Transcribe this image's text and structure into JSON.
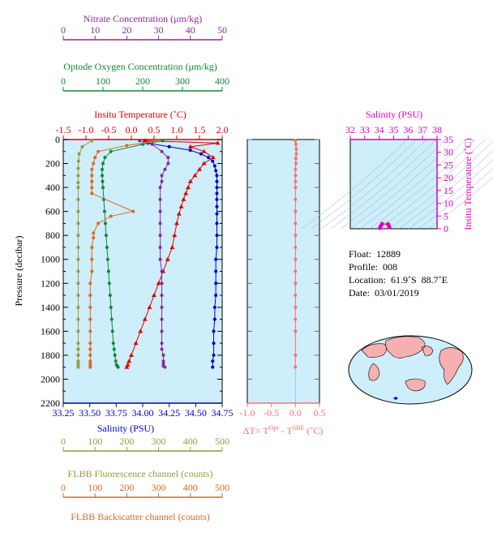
{
  "colors": {
    "plot_bg": "#cdeefa",
    "salinity": "#0000cc",
    "temperature": "#e00000",
    "oxygen": "#118833",
    "nitrate": "#8a2a9a",
    "fluorescence": "#99993a",
    "backscatter": "#dd6a1a",
    "delta_t": "#ff6f6f",
    "ts_axis": "#dd00bb",
    "land": "#f5b0b0"
  },
  "axes": {
    "nitrate": {
      "title": "Nitrate Concentration (μm/kg)",
      "ticks": [
        "0",
        "10",
        "20",
        "30",
        "40",
        "50"
      ],
      "range": [
        0,
        50
      ]
    },
    "oxygen": {
      "title": "Optode Oxygen Concentration (μm/kg)",
      "ticks": [
        "0",
        "100",
        "200",
        "300",
        "400"
      ],
      "range": [
        0,
        400
      ]
    },
    "temperature": {
      "title": "Insitu Temperature (˚C)",
      "ticks": [
        "-1.5",
        "-1.0",
        "-0.5",
        "0.0",
        "0.5",
        "1.0",
        "1.5",
        "2.0"
      ],
      "range": [
        -1.5,
        2.0
      ]
    },
    "salinity": {
      "title": "Salinity (PSU)",
      "ticks": [
        "33.25",
        "33.50",
        "33.75",
        "34.00",
        "34.25",
        "34.50",
        "34.75"
      ],
      "range": [
        33.25,
        34.75
      ]
    },
    "pressure": {
      "title": "Pressure (decibar)",
      "ticks": [
        "0",
        "200",
        "400",
        "600",
        "800",
        "1000",
        "1200",
        "1400",
        "1600",
        "1800",
        "2000",
        "2200"
      ],
      "range": [
        0,
        2200
      ]
    },
    "delta_t": {
      "title_main": "ΔT= T",
      "sup1": "Opt",
      "mid": " - T",
      "sup2": "SBE",
      "end": " (˚C)",
      "ticks": [
        "-1.0",
        "-0.5",
        "0.0",
        "0.5"
      ],
      "range": [
        -1.0,
        0.5
      ]
    },
    "fluorescence": {
      "title": "FLBB Fluorescence channel (counts)",
      "ticks": [
        "0",
        "100",
        "200",
        "300",
        "400",
        "500"
      ],
      "range": [
        0,
        500
      ]
    },
    "backscatter": {
      "title": "FLBB Backscatter channel (counts)",
      "ticks": [
        "0",
        "100",
        "200",
        "300",
        "400",
        "500"
      ],
      "range": [
        0,
        500
      ]
    },
    "ts_salinity": {
      "title": "Salinity (PSU)",
      "ticks": [
        "32",
        "33",
        "34",
        "35",
        "36",
        "37",
        "38"
      ],
      "range": [
        32,
        38
      ]
    },
    "ts_temperature": {
      "title": "Insitu Temperature (˚C)",
      "ticks": [
        "0",
        "5",
        "10",
        "15",
        "20",
        "25",
        "30",
        "35"
      ],
      "range": [
        0,
        35
      ]
    }
  },
  "info": {
    "float_label": "Float:",
    "float": "12889",
    "profile_label": "Profile:",
    "profile": "008",
    "location_label": "Location:",
    "location": "61.9˚S  88.7˚E",
    "date_label": "Date:",
    "date": "03/01/2019"
  },
  "chart_data": {
    "type": "line",
    "y": "pressure",
    "series": [
      {
        "key": "salinity",
        "x": [
          34.02,
          34.05,
          34.25,
          34.45,
          34.55,
          34.62,
          34.66,
          34.68,
          34.69,
          34.7,
          34.7,
          34.7,
          34.7,
          34.7,
          34.7,
          34.7,
          34.7,
          34.7,
          34.7,
          34.69,
          34.69,
          34.69,
          34.69,
          34.68,
          34.68,
          34.67,
          34.67,
          34.67,
          34.66,
          34.66
        ],
        "y": [
          10,
          30,
          60,
          90,
          120,
          150,
          180,
          220,
          260,
          300,
          350,
          400,
          450,
          500,
          560,
          620,
          700,
          800,
          900,
          1000,
          1100,
          1200,
          1300,
          1400,
          1500,
          1600,
          1700,
          1800,
          1850,
          1900
        ],
        "marker": "circle"
      },
      {
        "key": "temperature",
        "x": [
          0.3,
          1.9,
          1.3,
          1.6,
          1.8,
          1.6,
          1.5,
          1.4,
          1.3,
          1.25,
          1.2,
          1.15,
          1.1,
          1.05,
          1.0,
          0.95,
          0.9,
          0.8,
          0.7,
          0.6,
          0.5,
          0.4,
          0.3,
          0.2,
          0.1,
          0.0,
          -0.05,
          -0.08,
          -0.1
        ],
        "y": [
          10,
          30,
          60,
          100,
          150,
          200,
          250,
          300,
          350,
          400,
          450,
          500,
          560,
          620,
          700,
          800,
          900,
          1000,
          1100,
          1200,
          1300,
          1400,
          1500,
          1600,
          1700,
          1800,
          1850,
          1880,
          1900
        ],
        "marker": "triangle"
      },
      {
        "key": "oxygen",
        "x": [
          250,
          200,
          120,
          105,
          100,
          98,
          98,
          99,
          100,
          102,
          104,
          106,
          108,
          110,
          112,
          114,
          116,
          118,
          120,
          122,
          124,
          126,
          128,
          130,
          132,
          134,
          136,
          138
        ],
        "y": [
          10,
          40,
          100,
          150,
          200,
          250,
          300,
          350,
          400,
          500,
          600,
          700,
          800,
          900,
          1000,
          1100,
          1200,
          1300,
          1400,
          1500,
          1600,
          1700,
          1750,
          1800,
          1850,
          1880,
          1890,
          1900
        ],
        "marker": "circle"
      },
      {
        "key": "nitrate",
        "x": [
          24,
          28,
          31,
          33,
          33,
          32,
          31,
          31,
          30.5,
          30.5,
          30.5,
          30.5,
          30.5,
          30.5,
          30.5,
          31,
          31,
          31,
          31,
          31,
          31,
          31,
          31,
          31.5,
          31.5,
          31.5,
          31.5,
          32
        ],
        "y": [
          10,
          40,
          100,
          150,
          200,
          250,
          300,
          350,
          400,
          500,
          600,
          700,
          800,
          900,
          1000,
          1100,
          1200,
          1300,
          1400,
          1500,
          1600,
          1700,
          1750,
          1800,
          1850,
          1870,
          1890,
          1900
        ],
        "marker": "circle"
      },
      {
        "key": "fluorescence",
        "x": [
          90,
          60,
          50,
          48,
          47,
          47,
          47,
          47,
          47,
          47,
          47,
          47,
          47,
          47,
          47,
          47,
          47,
          47,
          47,
          47,
          47,
          47,
          47,
          47,
          47,
          47,
          47
        ],
        "y": [
          10,
          60,
          120,
          180,
          240,
          300,
          360,
          400,
          500,
          600,
          700,
          800,
          900,
          1000,
          1100,
          1200,
          1300,
          1400,
          1500,
          1600,
          1700,
          1750,
          1800,
          1850,
          1870,
          1890,
          1900
        ],
        "marker": "circle"
      },
      {
        "key": "backscatter",
        "x": [
          300,
          200,
          110,
          100,
          95,
          90,
          90,
          90,
          90,
          90,
          220,
          150,
          110,
          95,
          95,
          90,
          90,
          90,
          85,
          85,
          85,
          85,
          85,
          85,
          85,
          85,
          85,
          85,
          85,
          85
        ],
        "y": [
          10,
          50,
          100,
          150,
          200,
          250,
          300,
          350,
          400,
          450,
          600,
          640,
          700,
          780,
          820,
          900,
          1000,
          1100,
          1200,
          1300,
          1400,
          1500,
          1600,
          1700,
          1750,
          1800,
          1850,
          1870,
          1890,
          1900
        ],
        "marker": "circle"
      },
      {
        "key": "delta_t",
        "x": [
          0.0,
          0.01,
          0.02,
          0.02,
          0.01,
          0.01,
          0.0,
          0.0,
          0.0,
          0.0,
          0.0,
          0.0,
          0.0,
          0.0,
          0.0,
          0.0,
          0.0,
          0.0,
          0.0,
          0.0,
          0.0,
          0.0,
          0.0,
          0.0
        ],
        "y": [
          10,
          40,
          80,
          120,
          160,
          200,
          250,
          300,
          350,
          400,
          500,
          600,
          700,
          800,
          900,
          1000,
          1100,
          1200,
          1300,
          1400,
          1500,
          1600,
          1800,
          1900
        ],
        "marker": "circle"
      }
    ],
    "ts_points": {
      "salinity": [
        34.05,
        34.1,
        34.2,
        34.6,
        34.65,
        34.7
      ],
      "temperature": [
        0.3,
        1.0,
        1.9,
        1.8,
        1.5,
        0.6
      ]
    }
  }
}
